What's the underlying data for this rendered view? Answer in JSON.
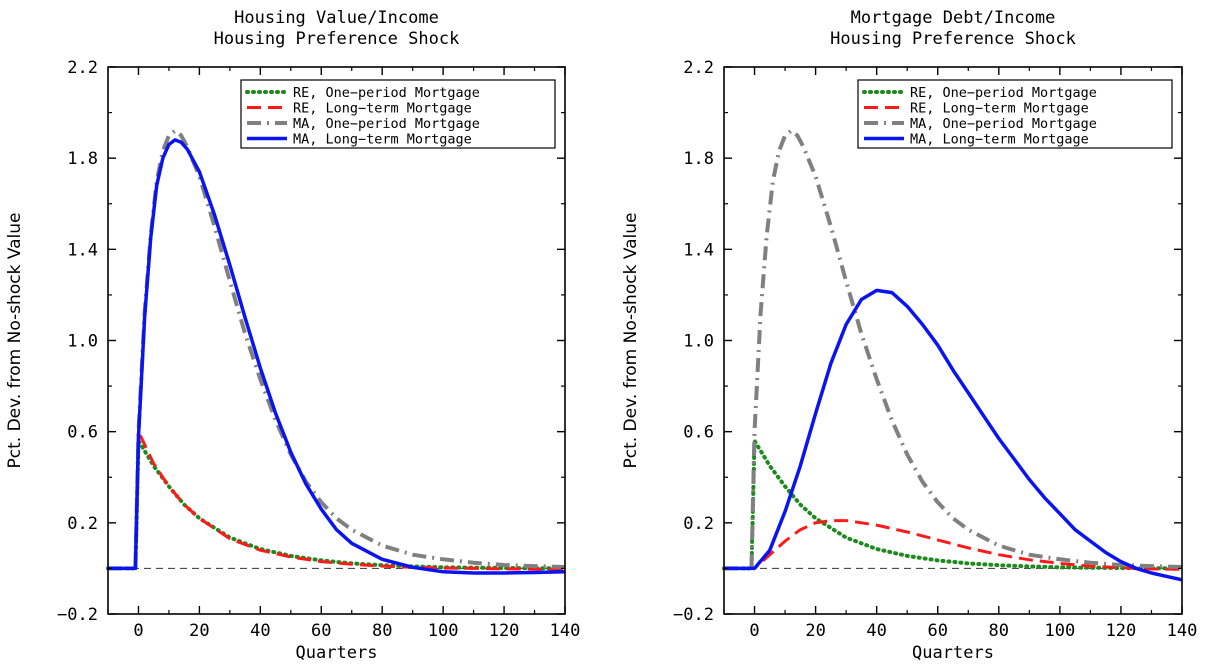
{
  "chart_data": [
    {
      "type": "line",
      "title": [
        "Housing Value/Income",
        "Housing Preference Shock"
      ],
      "xlabel": "Quarters",
      "ylabel": "Pct. Dev. from No-shock Value",
      "xlim": [
        -10,
        140
      ],
      "ylim": [
        -0.2,
        2.2
      ],
      "xticks": [
        0,
        20,
        40,
        60,
        80,
        100,
        120,
        140
      ],
      "yticks": [
        -0.2,
        0.2,
        0.6,
        1.0,
        1.4,
        1.8,
        2.2
      ],
      "ytick_labels": [
        "−0.2",
        "0.2",
        "0.6",
        "1.0",
        "1.4",
        "1.8",
        "2.2"
      ],
      "zero_line": true,
      "legend_position": "top-right",
      "series": [
        {
          "name": "RE, One−period Mortgage",
          "style": "dotted",
          "color": "#1e8a1e",
          "x": [
            -10,
            -1,
            0,
            5,
            10,
            15,
            20,
            30,
            40,
            50,
            60,
            70,
            80,
            90,
            100,
            110,
            120,
            130,
            140
          ],
          "y": [
            0,
            0,
            0.56,
            0.45,
            0.36,
            0.28,
            0.22,
            0.135,
            0.085,
            0.055,
            0.035,
            0.022,
            0.014,
            0.009,
            0.005,
            0.003,
            0.002,
            0.001,
            0.001
          ]
        },
        {
          "name": "RE, Long−term Mortgage",
          "style": "dashed",
          "color": "#ff1a1a",
          "x": [
            -10,
            -1,
            0,
            5,
            10,
            15,
            20,
            30,
            40,
            50,
            60,
            70,
            80,
            90,
            100,
            110,
            120,
            130,
            140
          ],
          "y": [
            0,
            0,
            0.6,
            0.46,
            0.36,
            0.28,
            0.22,
            0.13,
            0.08,
            0.05,
            0.03,
            0.018,
            0.01,
            0.005,
            0.002,
            0.0,
            -0.002,
            -0.003,
            -0.003
          ]
        },
        {
          "name": "MA, One−period Mortgage",
          "style": "dashdot",
          "color": "#808080",
          "x": [
            -10,
            -1,
            0,
            2,
            4,
            6,
            8,
            10,
            12,
            14,
            16,
            20,
            25,
            30,
            35,
            40,
            45,
            50,
            55,
            60,
            65,
            70,
            80,
            90,
            100,
            110,
            120,
            130,
            140
          ],
          "y": [
            0,
            0,
            0.6,
            1.12,
            1.46,
            1.7,
            1.83,
            1.9,
            1.92,
            1.9,
            1.85,
            1.72,
            1.5,
            1.26,
            1.03,
            0.83,
            0.65,
            0.5,
            0.38,
            0.29,
            0.22,
            0.17,
            0.1,
            0.06,
            0.04,
            0.025,
            0.015,
            0.01,
            0.006
          ]
        },
        {
          "name": "MA, Long−term Mortgage",
          "style": "solid",
          "color": "#0a14f0",
          "x": [
            -10,
            -1,
            0,
            2,
            4,
            6,
            8,
            10,
            12,
            14,
            16,
            20,
            25,
            30,
            35,
            40,
            45,
            50,
            55,
            60,
            65,
            70,
            80,
            90,
            100,
            110,
            120,
            130,
            140
          ],
          "y": [
            0,
            0,
            0.58,
            1.1,
            1.45,
            1.68,
            1.8,
            1.86,
            1.88,
            1.87,
            1.84,
            1.74,
            1.55,
            1.33,
            1.1,
            0.88,
            0.68,
            0.51,
            0.37,
            0.26,
            0.17,
            0.11,
            0.04,
            0.005,
            -0.015,
            -0.02,
            -0.02,
            -0.018,
            -0.015
          ]
        }
      ]
    },
    {
      "type": "line",
      "title": [
        "Mortgage Debt/Income",
        "Housing Preference Shock"
      ],
      "xlabel": "Quarters",
      "ylabel": "Pct. Dev. from No-shock Value",
      "xlim": [
        -10,
        140
      ],
      "ylim": [
        -0.2,
        2.2
      ],
      "xticks": [
        0,
        20,
        40,
        60,
        80,
        100,
        120,
        140
      ],
      "yticks": [
        -0.2,
        0.2,
        0.6,
        1.0,
        1.4,
        1.8,
        2.2
      ],
      "ytick_labels": [
        "−0.2",
        "0.2",
        "0.6",
        "1.0",
        "1.4",
        "1.8",
        "2.2"
      ],
      "zero_line": true,
      "legend_position": "top-right",
      "series": [
        {
          "name": "RE, One−period Mortgage",
          "style": "dotted",
          "color": "#1e8a1e",
          "x": [
            -10,
            -1,
            0,
            5,
            10,
            15,
            20,
            30,
            40,
            50,
            60,
            70,
            80,
            90,
            100,
            110,
            120,
            130,
            140
          ],
          "y": [
            0,
            0,
            0.56,
            0.45,
            0.36,
            0.28,
            0.22,
            0.135,
            0.085,
            0.055,
            0.035,
            0.022,
            0.014,
            0.009,
            0.005,
            0.003,
            0.002,
            0.001,
            0.001
          ]
        },
        {
          "name": "RE, Long−term Mortgage",
          "style": "dashed",
          "color": "#ff1a1a",
          "x": [
            -10,
            -1,
            0,
            5,
            10,
            15,
            20,
            25,
            30,
            35,
            40,
            50,
            60,
            70,
            80,
            90,
            100,
            110,
            120,
            130,
            140
          ],
          "y": [
            0,
            0,
            0.0,
            0.06,
            0.12,
            0.17,
            0.2,
            0.21,
            0.21,
            0.2,
            0.19,
            0.16,
            0.125,
            0.09,
            0.06,
            0.038,
            0.022,
            0.01,
            0.003,
            -0.002,
            -0.004
          ]
        },
        {
          "name": "MA, One−period Mortgage",
          "style": "dashdot",
          "color": "#808080",
          "x": [
            -10,
            -1,
            0,
            2,
            4,
            6,
            8,
            10,
            12,
            14,
            16,
            20,
            25,
            30,
            35,
            40,
            45,
            50,
            55,
            60,
            65,
            70,
            80,
            90,
            100,
            110,
            120,
            130,
            140
          ],
          "y": [
            0,
            0,
            0.6,
            1.12,
            1.46,
            1.7,
            1.83,
            1.9,
            1.92,
            1.9,
            1.85,
            1.72,
            1.5,
            1.26,
            1.03,
            0.83,
            0.65,
            0.5,
            0.38,
            0.29,
            0.22,
            0.17,
            0.1,
            0.06,
            0.04,
            0.025,
            0.015,
            0.01,
            0.006
          ]
        },
        {
          "name": "MA, Long−term Mortgage",
          "style": "solid",
          "color": "#0a14f0",
          "x": [
            -10,
            -1,
            0,
            5,
            10,
            15,
            20,
            25,
            30,
            35,
            40,
            45,
            50,
            55,
            60,
            65,
            70,
            75,
            80,
            85,
            90,
            95,
            100,
            105,
            110,
            115,
            120,
            125,
            130,
            135,
            140
          ],
          "y": [
            0,
            0,
            0.0,
            0.08,
            0.25,
            0.45,
            0.68,
            0.9,
            1.07,
            1.18,
            1.22,
            1.21,
            1.15,
            1.07,
            0.98,
            0.87,
            0.77,
            0.67,
            0.57,
            0.48,
            0.39,
            0.31,
            0.24,
            0.17,
            0.12,
            0.07,
            0.03,
            0.0,
            -0.02,
            -0.035,
            -0.05
          ]
        }
      ]
    }
  ]
}
